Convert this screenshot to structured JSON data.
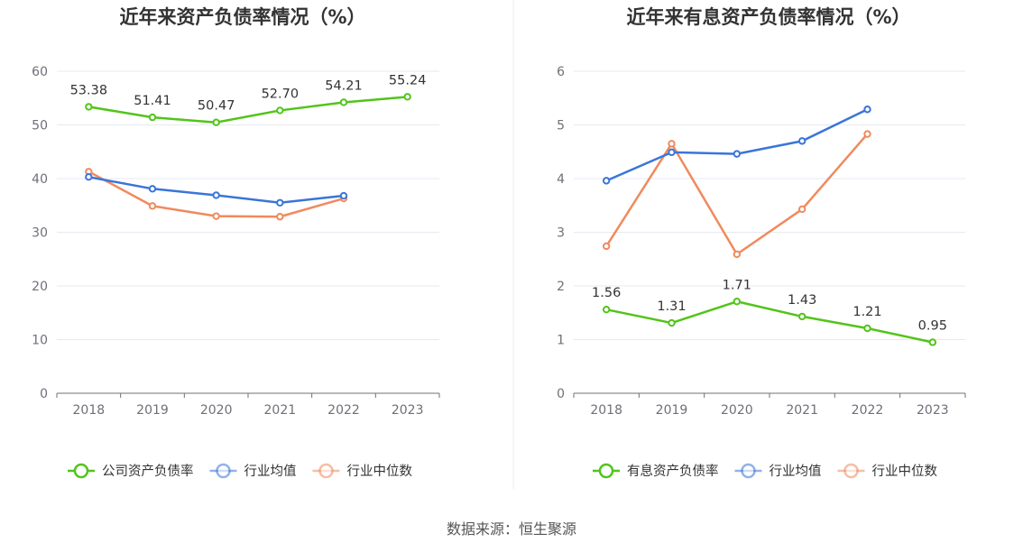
{
  "source_label": "数据来源：恒生聚源",
  "chart_data": [
    {
      "type": "line",
      "title": "近年来资产负债率情况（%）",
      "categories": [
        "2018",
        "2019",
        "2020",
        "2021",
        "2022",
        "2023"
      ],
      "ylim": [
        0,
        60
      ],
      "yticks": [
        0,
        10,
        20,
        30,
        40,
        50,
        60
      ],
      "grid": true,
      "legend_position": "bottom",
      "series": [
        {
          "name": "公司资产负债率",
          "color": "#52c41a",
          "values": [
            53.38,
            51.41,
            50.47,
            52.7,
            54.21,
            55.24
          ],
          "labels": [
            "53.38",
            "51.41",
            "50.47",
            "52.70",
            "54.21",
            "55.24"
          ]
        },
        {
          "name": "行业均值",
          "color": "#3a75d8",
          "values": [
            40.3,
            38.1,
            36.9,
            35.5,
            36.8,
            null
          ]
        },
        {
          "name": "行业中位数",
          "color": "#f08a5d",
          "values": [
            41.3,
            34.9,
            33.0,
            32.9,
            36.3,
            null
          ]
        }
      ]
    },
    {
      "type": "line",
      "title": "近年来有息资产负债率情况（%）",
      "categories": [
        "2018",
        "2019",
        "2020",
        "2021",
        "2022",
        "2023"
      ],
      "ylim": [
        0,
        6
      ],
      "yticks": [
        0,
        1,
        2,
        3,
        4,
        5,
        6
      ],
      "grid": true,
      "legend_position": "bottom",
      "series": [
        {
          "name": "有息资产负债率",
          "color": "#52c41a",
          "values": [
            1.56,
            1.31,
            1.71,
            1.43,
            1.21,
            0.95
          ],
          "labels": [
            "1.56",
            "1.31",
            "1.71",
            "1.43",
            "1.21",
            "0.95"
          ]
        },
        {
          "name": "行业均值",
          "color": "#3a75d8",
          "values": [
            3.96,
            4.49,
            4.46,
            4.7,
            5.29,
            null
          ]
        },
        {
          "name": "行业中位数",
          "color": "#f08a5d",
          "values": [
            2.74,
            4.65,
            2.59,
            3.43,
            4.83,
            null
          ]
        }
      ]
    }
  ]
}
